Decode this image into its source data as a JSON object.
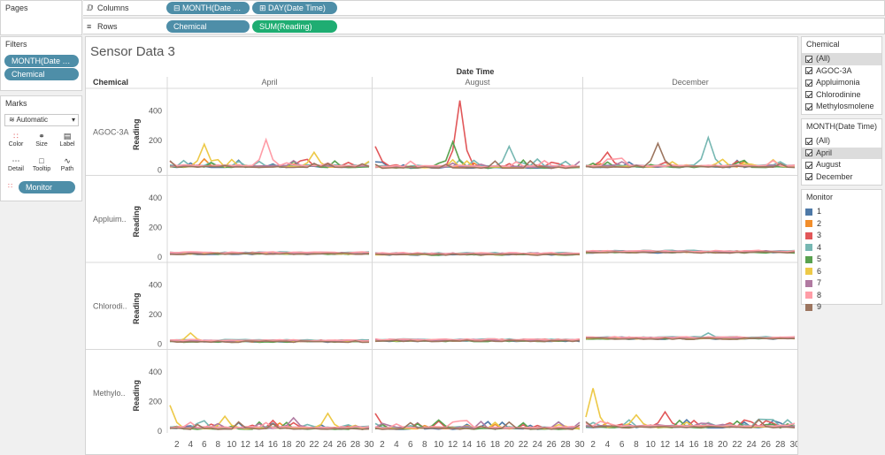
{
  "pages_label": "Pages",
  "columns": {
    "label": "Columns",
    "icon": "columns-icon",
    "pills": [
      "⊟ MONTH(Date Ti..",
      "⊞ DAY(Date Time)"
    ]
  },
  "rows": {
    "label": "Rows",
    "icon": "rows-icon",
    "pills": [
      "Chemical",
      "SUM(Reading)"
    ]
  },
  "filters": {
    "title": "Filters",
    "pills": [
      "MONTH(Date Ti..",
      "Chemical"
    ]
  },
  "marks": {
    "title": "Marks",
    "type": "Automatic",
    "buttons": [
      "Color",
      "Size",
      "Label",
      "Detail",
      "Tooltip",
      "Path"
    ],
    "field_pill": "Monitor"
  },
  "chemical_filter": {
    "title": "Chemical",
    "items": [
      "(All)",
      "AGOC-3A",
      "Appluimonia",
      "Chlorodinine",
      "Methylosmolene"
    ]
  },
  "month_filter": {
    "title": "MONTH(Date Time)",
    "items": [
      "(All)",
      "April",
      "August",
      "December"
    ],
    "selected": "April"
  },
  "monitor_legend": {
    "title": "Monitor",
    "items": [
      {
        "label": "1",
        "color": "#4e79a7"
      },
      {
        "label": "2",
        "color": "#f28e2b"
      },
      {
        "label": "3",
        "color": "#e15759"
      },
      {
        "label": "4",
        "color": "#76b7b2"
      },
      {
        "label": "5",
        "color": "#59a14f"
      },
      {
        "label": "6",
        "color": "#edc948"
      },
      {
        "label": "7",
        "color": "#b07aa1"
      },
      {
        "label": "8",
        "color": "#ff9da7"
      },
      {
        "label": "9",
        "color": "#9c755f"
      }
    ]
  },
  "sheet": {
    "title": "Sensor Data 3",
    "column_header_title": "Date Time",
    "row_header_title": "Chemical",
    "months": [
      "April",
      "August",
      "December"
    ],
    "chemicals": [
      "AGOC-3A",
      "Appluim..",
      "Chlorodi..",
      "Methylo.."
    ],
    "y_axis_label": "Reading",
    "y_ticks": [
      "0",
      "200",
      "400"
    ],
    "x_ticks": [
      "2",
      "4",
      "6",
      "8",
      "10",
      "12",
      "14",
      "16",
      "18",
      "20",
      "22",
      "24",
      "26",
      "28",
      "30"
    ]
  },
  "chart_data": {
    "type": "line",
    "title": "Sensor Data 3",
    "xlabel": "Date Time",
    "ylabel": "Reading",
    "ylim": [
      0,
      480
    ],
    "rows": [
      "AGOC-3A",
      "Appluim..",
      "Chlorodi..",
      "Methylo.."
    ],
    "columns": [
      "April",
      "August",
      "December"
    ],
    "x": [
      1,
      30
    ],
    "series": [
      {
        "name": "1",
        "color": "#4e79a7"
      },
      {
        "name": "2",
        "color": "#f28e2b"
      },
      {
        "name": "3",
        "color": "#e15759"
      },
      {
        "name": "4",
        "color": "#76b7b2"
      },
      {
        "name": "5",
        "color": "#59a14f"
      },
      {
        "name": "6",
        "color": "#edc948"
      },
      {
        "name": "7",
        "color": "#b07aa1"
      },
      {
        "name": "8",
        "color": "#ff9da7"
      },
      {
        "name": "9",
        "color": "#9c755f"
      }
    ],
    "baselines": {
      "AGOC-3A": {
        "April": 25,
        "August": 20,
        "December": 25
      },
      "Appluim..": {
        "April": 25,
        "August": 20,
        "December": 35
      },
      "Chlorodi..": {
        "April": 20,
        "August": 25,
        "December": 40
      },
      "Methylo..": {
        "April": 20,
        "August": 20,
        "December": 30
      }
    },
    "peaks": [
      {
        "row": "AGOC-3A",
        "col": "April",
        "series": "6",
        "day": 6,
        "value": 175
      },
      {
        "row": "AGOC-3A",
        "col": "April",
        "series": "8",
        "day": 15,
        "value": 205
      },
      {
        "row": "AGOC-3A",
        "col": "April",
        "series": "6",
        "day": 22,
        "value": 120
      },
      {
        "row": "AGOC-3A",
        "col": "August",
        "series": "3",
        "day": 13,
        "value": 470
      },
      {
        "row": "AGOC-3A",
        "col": "August",
        "series": "5",
        "day": 12,
        "value": 190
      },
      {
        "row": "AGOC-3A",
        "col": "August",
        "series": "4",
        "day": 20,
        "value": 160
      },
      {
        "row": "AGOC-3A",
        "col": "August",
        "series": "3",
        "day": 1,
        "value": 160
      },
      {
        "row": "AGOC-3A",
        "col": "December",
        "series": "4",
        "day": 18,
        "value": 220
      },
      {
        "row": "AGOC-3A",
        "col": "December",
        "series": "9",
        "day": 11,
        "value": 180
      },
      {
        "row": "AGOC-3A",
        "col": "December",
        "series": "3",
        "day": 4,
        "value": 120
      },
      {
        "row": "Chlorodi..",
        "col": "April",
        "series": "6",
        "day": 4,
        "value": 75
      },
      {
        "row": "Chlorodi..",
        "col": "December",
        "series": "4",
        "day": 18,
        "value": 75
      },
      {
        "row": "Methylo..",
        "col": "April",
        "series": "6",
        "day": 1,
        "value": 175
      },
      {
        "row": "Methylo..",
        "col": "April",
        "series": "6",
        "day": 9,
        "value": 100
      },
      {
        "row": "Methylo..",
        "col": "April",
        "series": "6",
        "day": 24,
        "value": 120
      },
      {
        "row": "Methylo..",
        "col": "April",
        "series": "7",
        "day": 19,
        "value": 90
      },
      {
        "row": "Methylo..",
        "col": "August",
        "series": "3",
        "day": 1,
        "value": 120
      },
      {
        "row": "Methylo..",
        "col": "August",
        "series": "5",
        "day": 10,
        "value": 75
      },
      {
        "row": "Methylo..",
        "col": "December",
        "series": "6",
        "day": 2,
        "value": 290
      },
      {
        "row": "Methylo..",
        "col": "December",
        "series": "3",
        "day": 12,
        "value": 130
      },
      {
        "row": "Methylo..",
        "col": "December",
        "series": "6",
        "day": 8,
        "value": 110
      }
    ]
  }
}
